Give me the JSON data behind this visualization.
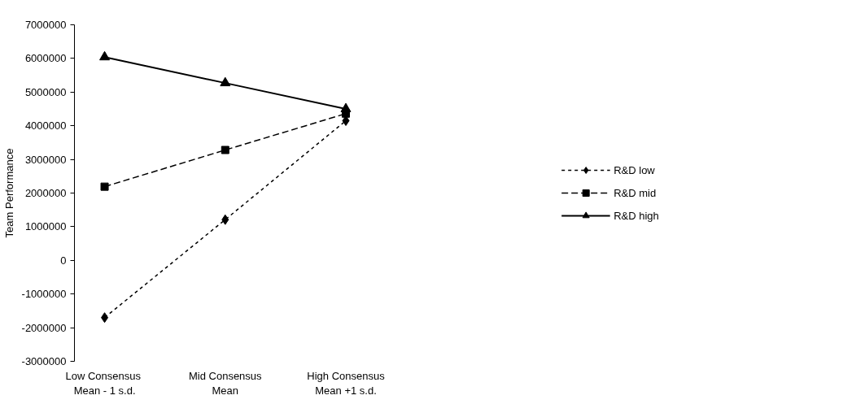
{
  "chart_data": {
    "type": "line",
    "ylabel": "Team Performance",
    "categories": [
      "Low  Consensus\nMean - 1 s.d.",
      "Mid Consensus\nMean",
      "High Consensus\nMean +1 s.d."
    ],
    "series": [
      {
        "name": "R&D low",
        "color": "#000000",
        "values": [
          -1700000,
          1210000,
          4150000
        ],
        "marker": "diamond",
        "line_style": "dotted"
      },
      {
        "name": "R&D mid",
        "color": "#000000",
        "values": [
          2190000,
          3280000,
          4360000
        ],
        "marker": "square",
        "line_style": "dashed"
      },
      {
        "name": "R&D high",
        "color": "#000000",
        "values": [
          6040000,
          5270000,
          4500000
        ],
        "marker": "triangle",
        "line_style": "solid"
      }
    ],
    "ylim": [
      -3000000,
      7000000
    ],
    "yticks": [
      -3000000,
      -2000000,
      -1000000,
      0,
      1000000,
      2000000,
      3000000,
      4000000,
      5000000,
      6000000,
      7000000
    ],
    "grid": false,
    "legend": "right"
  }
}
